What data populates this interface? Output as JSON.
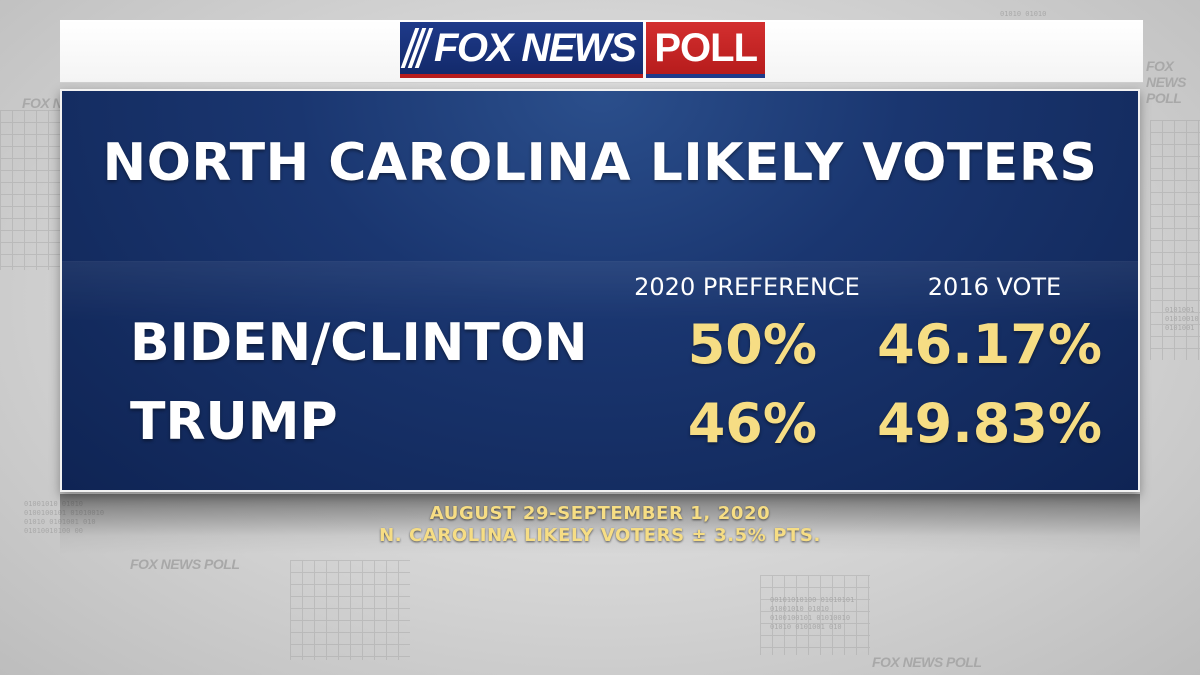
{
  "brand": {
    "fox_news": "FOX NEWS",
    "poll": "POLL",
    "watermark": "FOX NEWS POLL"
  },
  "panel": {
    "title": "NORTH CAROLINA LIKELY VOTERS",
    "columns": [
      "2020 PREFERENCE",
      "2016 VOTE"
    ],
    "rows": [
      {
        "label": "BIDEN/CLINTON",
        "values": [
          "50%",
          "46.17%"
        ]
      },
      {
        "label": "TRUMP",
        "values": [
          "46%",
          "49.83%"
        ]
      }
    ]
  },
  "footnote": {
    "dates": "AUGUST 29-SEPTEMBER 1, 2020",
    "sample": "N. CAROLINA LIKELY VOTERS ± 3.5% PTS."
  },
  "colors": {
    "panel_blue": "#1a3670",
    "value_gold": "#f6dd84",
    "brand_red": "#c62828",
    "brand_blue": "#1e3a8a"
  }
}
